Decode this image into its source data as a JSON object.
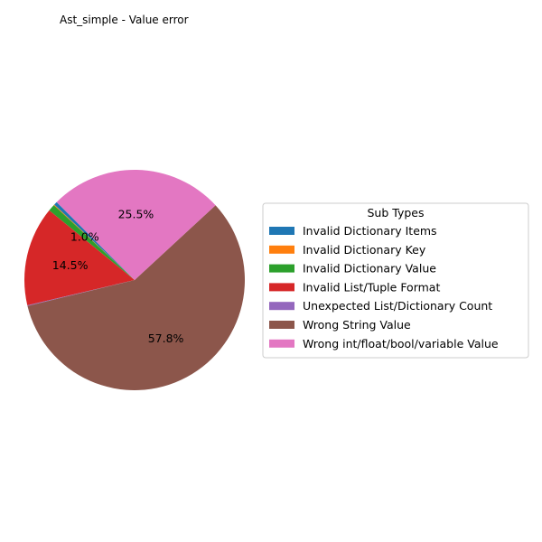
{
  "chart_data": {
    "type": "pie",
    "title": "Ast_simple - Value error",
    "categories": [
      " Invalid Dictionary Items",
      " Invalid Dictionary Key",
      " Invalid Dictionary Value",
      " Invalid List/Tuple Format",
      " Unexpected List/Dictionary Count",
      " Wrong String Value",
      " Wrong int/float/bool/variable Value"
    ],
    "values": [
      0.5,
      0.1,
      1.0,
      14.5,
      0.1,
      57.8,
      25.5
    ],
    "colors": [
      "#1f77b4",
      "#ff7f0e",
      "#2ca02c",
      "#d62728",
      "#9467bd",
      "#8c564b",
      "#e377c2"
    ],
    "percent_labels": [
      "",
      "",
      "1.0%",
      "14.5%",
      "",
      "57.8%",
      "25.5%"
    ],
    "legend_title": "Sub Types",
    "legend_position": "right"
  }
}
